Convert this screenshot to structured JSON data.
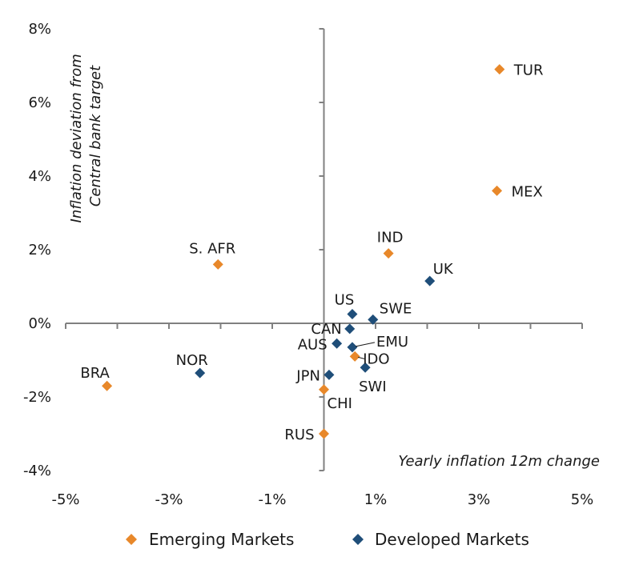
{
  "chart_data": {
    "type": "scatter",
    "xlabel": "Yearly inflation 12m change",
    "ylabel": "Inflation deviation from Central bank target",
    "ylabel_lines": [
      "Inflation deviation from",
      "Central bank target"
    ],
    "xlim": [
      -5,
      5
    ],
    "ylim": [
      -4,
      8
    ],
    "x_ticks": [
      -5,
      -3,
      -1,
      1,
      3,
      5
    ],
    "x_tick_labels": [
      "-5%",
      "-3%",
      "-1%",
      "1%",
      "3%",
      "5%"
    ],
    "y_ticks": [
      -4,
      -2,
      0,
      2,
      4,
      6,
      8
    ],
    "y_tick_labels": [
      "-4%",
      "-2%",
      "0%",
      "2%",
      "4%",
      "6%",
      "8%"
    ],
    "grid": false,
    "legend_position": "bottom",
    "series": [
      {
        "name": "Emerging Markets",
        "color": "#E8882A",
        "marker": "diamond",
        "points": [
          {
            "label": "TUR",
            "x": 3.4,
            "y": 6.9
          },
          {
            "label": "MEX",
            "x": 3.35,
            "y": 3.6
          },
          {
            "label": "IND",
            "x": 1.25,
            "y": 1.9
          },
          {
            "label": "S. AFR",
            "x": -2.05,
            "y": 1.6
          },
          {
            "label": "IDO",
            "x": 0.6,
            "y": -0.9
          },
          {
            "label": "BRA",
            "x": -4.2,
            "y": -1.7
          },
          {
            "label": "CHI",
            "x": 0.0,
            "y": -1.8
          },
          {
            "label": "RUS",
            "x": 0.0,
            "y": -3.0
          }
        ]
      },
      {
        "name": "Developed Markets",
        "color": "#1F4E79",
        "marker": "diamond",
        "points": [
          {
            "label": "UK",
            "x": 2.05,
            "y": 1.15
          },
          {
            "label": "US",
            "x": 0.55,
            "y": 0.25
          },
          {
            "label": "SWE",
            "x": 0.95,
            "y": 0.1
          },
          {
            "label": "CAN",
            "x": 0.5,
            "y": -0.15
          },
          {
            "label": "AUS",
            "x": 0.25,
            "y": -0.55
          },
          {
            "label": "EMU",
            "x": 0.55,
            "y": -0.65
          },
          {
            "label": "SWI",
            "x": 0.8,
            "y": -1.2
          },
          {
            "label": "JPN",
            "x": 0.1,
            "y": -1.4
          },
          {
            "label": "NOR",
            "x": -2.4,
            "y": -1.35
          }
        ]
      }
    ]
  }
}
